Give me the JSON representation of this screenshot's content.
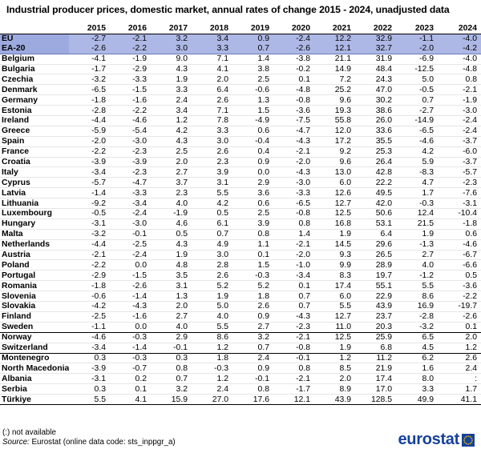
{
  "title": "Industrial producer prices, domestic market, annual rates of change 2015 - 2024, unadjusted data",
  "years": [
    "2015",
    "2016",
    "2017",
    "2018",
    "2019",
    "2020",
    "2021",
    "2022",
    "2023",
    "2024"
  ],
  "rows": [
    {
      "name": "EU",
      "values": [
        "-2.7",
        "-2.1",
        "3.2",
        "3.4",
        "0.9",
        "-2.4",
        "12.2",
        "32.9",
        "-1.1",
        "-4.0"
      ]
    },
    {
      "name": "EA-20",
      "values": [
        "-2.6",
        "-2.2",
        "3.0",
        "3.3",
        "0.7",
        "-2.6",
        "12.1",
        "32.7",
        "-2.0",
        "-4.2"
      ]
    },
    {
      "name": "Belgium",
      "values": [
        "-4.1",
        "-1.9",
        "9.0",
        "7.1",
        "1.4",
        "-3.8",
        "21.1",
        "31.9",
        "-6.9",
        "-4.0"
      ]
    },
    {
      "name": "Bulgaria",
      "values": [
        "-1.7",
        "-2.9",
        "4.3",
        "4.1",
        "3.8",
        "-0.2",
        "14.9",
        "48.4",
        "-12.5",
        "-4.8"
      ]
    },
    {
      "name": "Czechia",
      "values": [
        "-3.2",
        "-3.3",
        "1.9",
        "2.0",
        "2.5",
        "0.1",
        "7.2",
        "24.3",
        "5.0",
        "0.8"
      ]
    },
    {
      "name": "Denmark",
      "values": [
        "-6.5",
        "-1.5",
        "3.3",
        "6.4",
        "-0.6",
        "-4.8",
        "25.2",
        "47.0",
        "-0.5",
        "-2.1"
      ]
    },
    {
      "name": "Germany",
      "values": [
        "-1.8",
        "-1.6",
        "2.4",
        "2.6",
        "1.3",
        "-0.8",
        "9.6",
        "30.2",
        "0.7",
        "-1.9"
      ]
    },
    {
      "name": "Estonia",
      "values": [
        "-2.8",
        "-2.2",
        "3.4",
        "7.1",
        "1.5",
        "-3.6",
        "19.3",
        "38.6",
        "-2.7",
        "-3.0"
      ]
    },
    {
      "name": "Ireland",
      "values": [
        "-4.4",
        "-4.6",
        "1.2",
        "7.8",
        "-4.9",
        "-7.5",
        "55.8",
        "26.0",
        "-14.9",
        "-2.4"
      ]
    },
    {
      "name": "Greece",
      "values": [
        "-5.9",
        "-5.4",
        "4.2",
        "3.3",
        "0.6",
        "-4.7",
        "12.0",
        "33.6",
        "-6.5",
        "-2.4"
      ]
    },
    {
      "name": "Spain",
      "values": [
        "-2.0",
        "-3.0",
        "4.3",
        "3.0",
        "-0.4",
        "-4.3",
        "17.2",
        "35.5",
        "-4.6",
        "-3.7"
      ]
    },
    {
      "name": "France",
      "values": [
        "-2.2",
        "-2.3",
        "2.5",
        "2.6",
        "0.4",
        "-2.1",
        "9.2",
        "25.3",
        "4.2",
        "-6.0"
      ]
    },
    {
      "name": "Croatia",
      "values": [
        "-3.9",
        "-3.9",
        "2.0",
        "2.3",
        "0.9",
        "-2.0",
        "9.6",
        "26.4",
        "5.9",
        "-3.7"
      ]
    },
    {
      "name": "Italy",
      "values": [
        "-3.4",
        "-2.3",
        "2.7",
        "3.9",
        "0.0",
        "-4.3",
        "13.0",
        "42.8",
        "-8.3",
        "-5.7"
      ]
    },
    {
      "name": "Cyprus",
      "values": [
        "-5.7",
        "-4.7",
        "3.7",
        "3.1",
        "2.9",
        "-3.0",
        "6.0",
        "22.2",
        "4.7",
        "-2.3"
      ]
    },
    {
      "name": "Latvia",
      "values": [
        "-1.4",
        "-3.3",
        "2.3",
        "5.5",
        "3.6",
        "-3.3",
        "12.6",
        "49.5",
        "1.7",
        "-7.6"
      ]
    },
    {
      "name": "Lithuania",
      "values": [
        "-9.2",
        "-3.4",
        "4.0",
        "4.2",
        "0.6",
        "-6.5",
        "12.7",
        "42.0",
        "-0.3",
        "-3.1"
      ]
    },
    {
      "name": "Luxembourg",
      "values": [
        "-0.5",
        "-2.4",
        "-1.9",
        "0.5",
        "2.5",
        "-0.8",
        "12.5",
        "50.6",
        "12.4",
        "-10.4"
      ]
    },
    {
      "name": "Hungary",
      "values": [
        "-3.1",
        "-3.0",
        "4.6",
        "6.1",
        "3.9",
        "0.8",
        "16.8",
        "53.1",
        "21.5",
        "-1.8"
      ]
    },
    {
      "name": "Malta",
      "values": [
        "-3.2",
        "-0.1",
        "0.5",
        "0.7",
        "0.8",
        "1.4",
        "1.9",
        "6.4",
        "1.9",
        "0.6"
      ]
    },
    {
      "name": "Netherlands",
      "values": [
        "-4.4",
        "-2.5",
        "4.3",
        "4.9",
        "1.1",
        "-2.1",
        "14.5",
        "29.6",
        "-1.3",
        "-4.6"
      ]
    },
    {
      "name": "Austria",
      "values": [
        "-2.1",
        "-2.4",
        "1.9",
        "3.0",
        "0.1",
        "-2.0",
        "9.3",
        "26.5",
        "2.7",
        "-6.7"
      ]
    },
    {
      "name": "Poland",
      "values": [
        "-2.2",
        "0.0",
        "4.8",
        "2.8",
        "1.5",
        "-1.0",
        "9.9",
        "28.9",
        "4.0",
        "-6.6"
      ]
    },
    {
      "name": "Portugal",
      "values": [
        "-2.9",
        "-1.5",
        "3.5",
        "2.6",
        "-0.3",
        "-3.4",
        "8.3",
        "19.7",
        "-1.2",
        "0.5"
      ]
    },
    {
      "name": "Romania",
      "values": [
        "-1.8",
        "-2.6",
        "3.1",
        "5.2",
        "5.2",
        "0.1",
        "17.4",
        "55.1",
        "5.5",
        "-3.6"
      ]
    },
    {
      "name": "Slovenia",
      "values": [
        "-0.6",
        "-1.4",
        "1.3",
        "1.9",
        "1.8",
        "0.7",
        "6.0",
        "22.9",
        "8.6",
        "-2.2"
      ]
    },
    {
      "name": "Slovakia",
      "values": [
        "-4.2",
        "-4.3",
        "2.0",
        "5.0",
        "2.6",
        "0.7",
        "5.5",
        "43.9",
        "16.9",
        "-19.7"
      ]
    },
    {
      "name": "Finland",
      "values": [
        "-2.5",
        "-1.6",
        "2.7",
        "4.0",
        "0.9",
        "-4.3",
        "12.7",
        "23.7",
        "-2.8",
        "-2.6"
      ]
    },
    {
      "name": "Sweden",
      "values": [
        "-1.1",
        "0.0",
        "4.0",
        "5.5",
        "2.7",
        "-2.3",
        "11.0",
        "20.3",
        "-3.2",
        "0.1"
      ]
    },
    {
      "name": "Norway",
      "values": [
        "-4.6",
        "-0.3",
        "2.9",
        "8.6",
        "3.2",
        "-2.1",
        "12.5",
        "25.9",
        "6.5",
        "2.0"
      ]
    },
    {
      "name": "Switzerland",
      "values": [
        "-3.4",
        "-1.4",
        "-0.1",
        "1.2",
        "0.7",
        "-0.8",
        "1.9",
        "6.8",
        "4.5",
        "1.2"
      ]
    },
    {
      "name": "Montenegro",
      "values": [
        "0.3",
        "-0.3",
        "0.3",
        "1.8",
        "2.4",
        "-0.1",
        "1.2",
        "11.2",
        "6.2",
        "2.6"
      ]
    },
    {
      "name": "North Macedonia",
      "values": [
        "-3.9",
        "-0.7",
        "0.8",
        "-0.3",
        "0.9",
        "0.8",
        "8.5",
        "21.9",
        "1.6",
        "2.4"
      ]
    },
    {
      "name": "Albania",
      "values": [
        "-3.1",
        "0.2",
        "0.7",
        "1.2",
        "-0.1",
        "-2.1",
        "2.0",
        "17.4",
        "8.0",
        ":"
      ]
    },
    {
      "name": "Serbia",
      "values": [
        "0.3",
        "0.1",
        "3.2",
        "2.4",
        "0.8",
        "-1.7",
        "8.9",
        "17.0",
        "3.3",
        "1.7"
      ]
    },
    {
      "name": "Türkiye",
      "values": [
        "5.5",
        "4.1",
        "15.9",
        "27.0",
        "17.6",
        "12.1",
        "43.9",
        "128.5",
        "49.9",
        "41.1"
      ]
    }
  ],
  "footnotes": {
    "not_available": "(:) not available",
    "source_label": "Source:",
    "source_text": " Eurostat (online data code: sts_inppgr_a)"
  },
  "logo": {
    "text": "eurostat",
    "colors": {
      "blue": "#16419a",
      "yellow": "#f5c400"
    }
  }
}
